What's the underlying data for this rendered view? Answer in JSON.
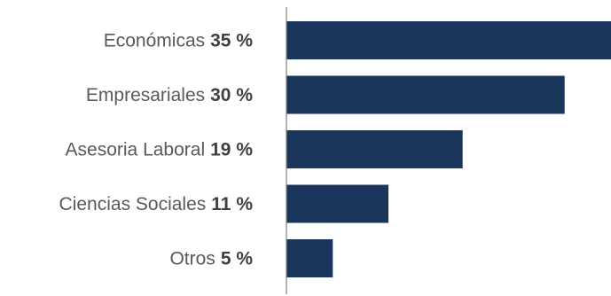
{
  "chart_data": {
    "type": "bar",
    "orientation": "horizontal",
    "categories": [
      "Económicas",
      "Empresariales",
      "Asesoria Laboral",
      "Ciencias Sociales",
      "Otros"
    ],
    "value_labels": [
      "35 %",
      "30 %",
      "19 %",
      "11 %",
      "5 %"
    ],
    "values": [
      35,
      30,
      19,
      11,
      5
    ],
    "title": "",
    "xlabel": "",
    "ylabel": "",
    "xlim": [
      0,
      35
    ],
    "grid": false,
    "legend": "none",
    "bar_color": "#1b365d",
    "axis_color": "#7f7f7f"
  }
}
